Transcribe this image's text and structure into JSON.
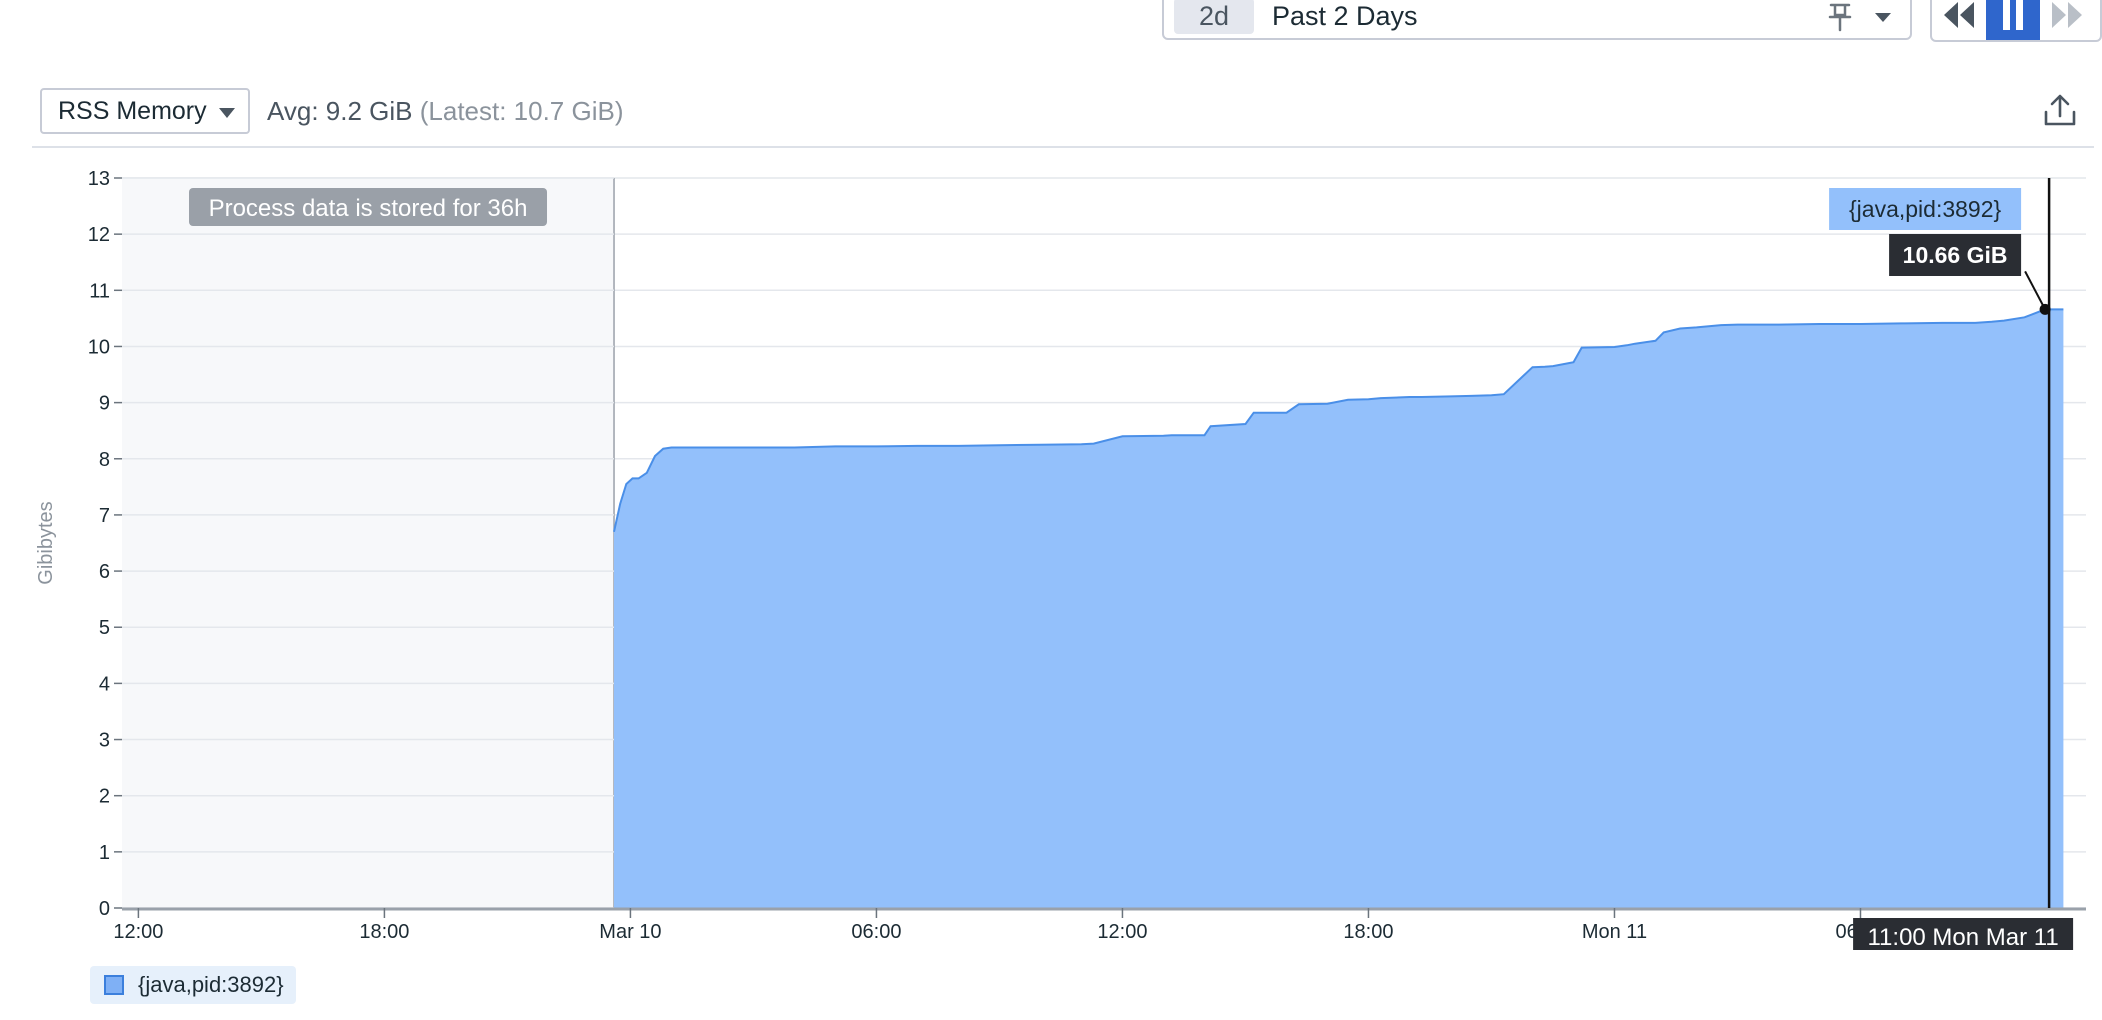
{
  "time_range": {
    "chip": "2d",
    "label": "Past 2 Days",
    "pin_icon": "pin-icon",
    "dropdown_icon": "chevron-down-icon"
  },
  "playback": {
    "rewind_icon": "rewind-icon",
    "pause_icon": "pause-icon",
    "forward_icon": "fast-forward-icon",
    "active_color": "#2f66cc"
  },
  "metric_select": {
    "label": "RSS Memory"
  },
  "summary": {
    "avg": "Avg: 9.2 GiB",
    "latest": "(Latest: 10.7 GiB)"
  },
  "export_icon": "export-icon",
  "chart_data": {
    "type": "area",
    "ylabel": "Gibibytes",
    "ylim": [
      0,
      13
    ],
    "y_ticks": [
      "0",
      "1",
      "2",
      "3",
      "4",
      "5",
      "6",
      "7",
      "8",
      "9",
      "10",
      "11",
      "12",
      "13"
    ],
    "x_ticks": [
      "12:00",
      "18:00",
      "Mar 10",
      "06:00",
      "12:00",
      "18:00",
      "Mon 11",
      "06:00"
    ],
    "x_range_hours": [
      -0.4,
      47.5
    ],
    "retention_region": {
      "from_hour": -0.4,
      "to_hour": 11.6,
      "note": "Process data is stored for 36h"
    },
    "series": [
      {
        "name": "{java,pid:3892}",
        "color": "#93c0fb",
        "line_color": "#4a8fe8",
        "x_hours": [
          11.6,
          11.75,
          11.9,
          12.05,
          12.2,
          12.4,
          12.6,
          12.8,
          13,
          14,
          15,
          16,
          17,
          18,
          19,
          20,
          21,
          22,
          23,
          23.3,
          24,
          25,
          25.2,
          26,
          26.15,
          27,
          27.2,
          28,
          28.3,
          29,
          29.5,
          30,
          30.3,
          31,
          31.3,
          32,
          32.5,
          33,
          33.3,
          34,
          34.3,
          34.5,
          35,
          35.2,
          36,
          36.3,
          36.5,
          37,
          37.2,
          37.6,
          38,
          38.6,
          39,
          40,
          41,
          42,
          43,
          44,
          44.8,
          45.2,
          45.5,
          46,
          46.5,
          46.95
        ],
        "values": [
          6.7,
          7.2,
          7.55,
          7.65,
          7.65,
          7.75,
          8.05,
          8.18,
          8.2,
          8.2,
          8.2,
          8.2,
          8.22,
          8.22,
          8.23,
          8.23,
          8.24,
          8.25,
          8.26,
          8.27,
          8.4,
          8.41,
          8.42,
          8.42,
          8.58,
          8.62,
          8.82,
          8.82,
          8.97,
          8.98,
          9.05,
          9.06,
          9.08,
          9.1,
          9.1,
          9.11,
          9.12,
          9.13,
          9.15,
          9.63,
          9.64,
          9.65,
          9.72,
          9.98,
          9.99,
          10.02,
          10.05,
          10.1,
          10.25,
          10.32,
          10.34,
          10.38,
          10.39,
          10.39,
          10.4,
          10.4,
          10.41,
          10.42,
          10.42,
          10.44,
          10.46,
          10.52,
          10.66,
          10.66
        ]
      }
    ],
    "hover": {
      "hour": 46.6,
      "value": 10.66,
      "series_label": "{java,pid:3892}",
      "value_label": "10.66 GiB",
      "time_label": "11:00 Mon Mar 11"
    }
  },
  "legend": {
    "items": [
      {
        "label": "{java,pid:3892}",
        "color": "#93c0fb"
      }
    ]
  }
}
